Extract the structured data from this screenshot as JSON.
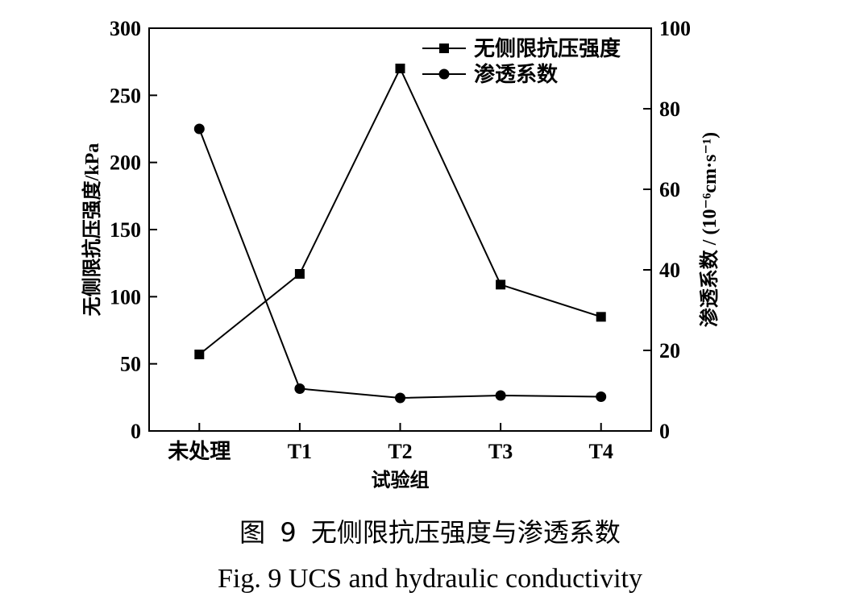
{
  "chart_data": {
    "type": "line",
    "categories": [
      "未处理",
      "T1",
      "T2",
      "T3",
      "T4"
    ],
    "xlabel": "试验组",
    "ylabel_left": "无侧限抗压强度/kPa",
    "ylabel_right": "渗透系数 / (10⁻⁶cm·s⁻¹)",
    "ylim_left": [
      0,
      300
    ],
    "ylim_right": [
      0,
      100
    ],
    "yticks_left": [
      "0",
      "50",
      "100",
      "150",
      "200",
      "250",
      "300"
    ],
    "yticks_right": [
      "0",
      "20",
      "40",
      "60",
      "80",
      "100"
    ],
    "legend_position": "top-right",
    "series": [
      {
        "name": "无侧限抗压强度",
        "axis": "left",
        "marker": "square",
        "values": [
          57,
          117,
          270,
          109,
          85
        ]
      },
      {
        "name": "渗透系数",
        "axis": "right",
        "marker": "circle",
        "values": [
          75,
          10.5,
          8.2,
          8.8,
          8.5
        ]
      }
    ]
  },
  "caption": {
    "cn": "图 9  无侧限抗压强度与渗透系数",
    "en": "Fig. 9 UCS and hydraulic conductivity"
  }
}
